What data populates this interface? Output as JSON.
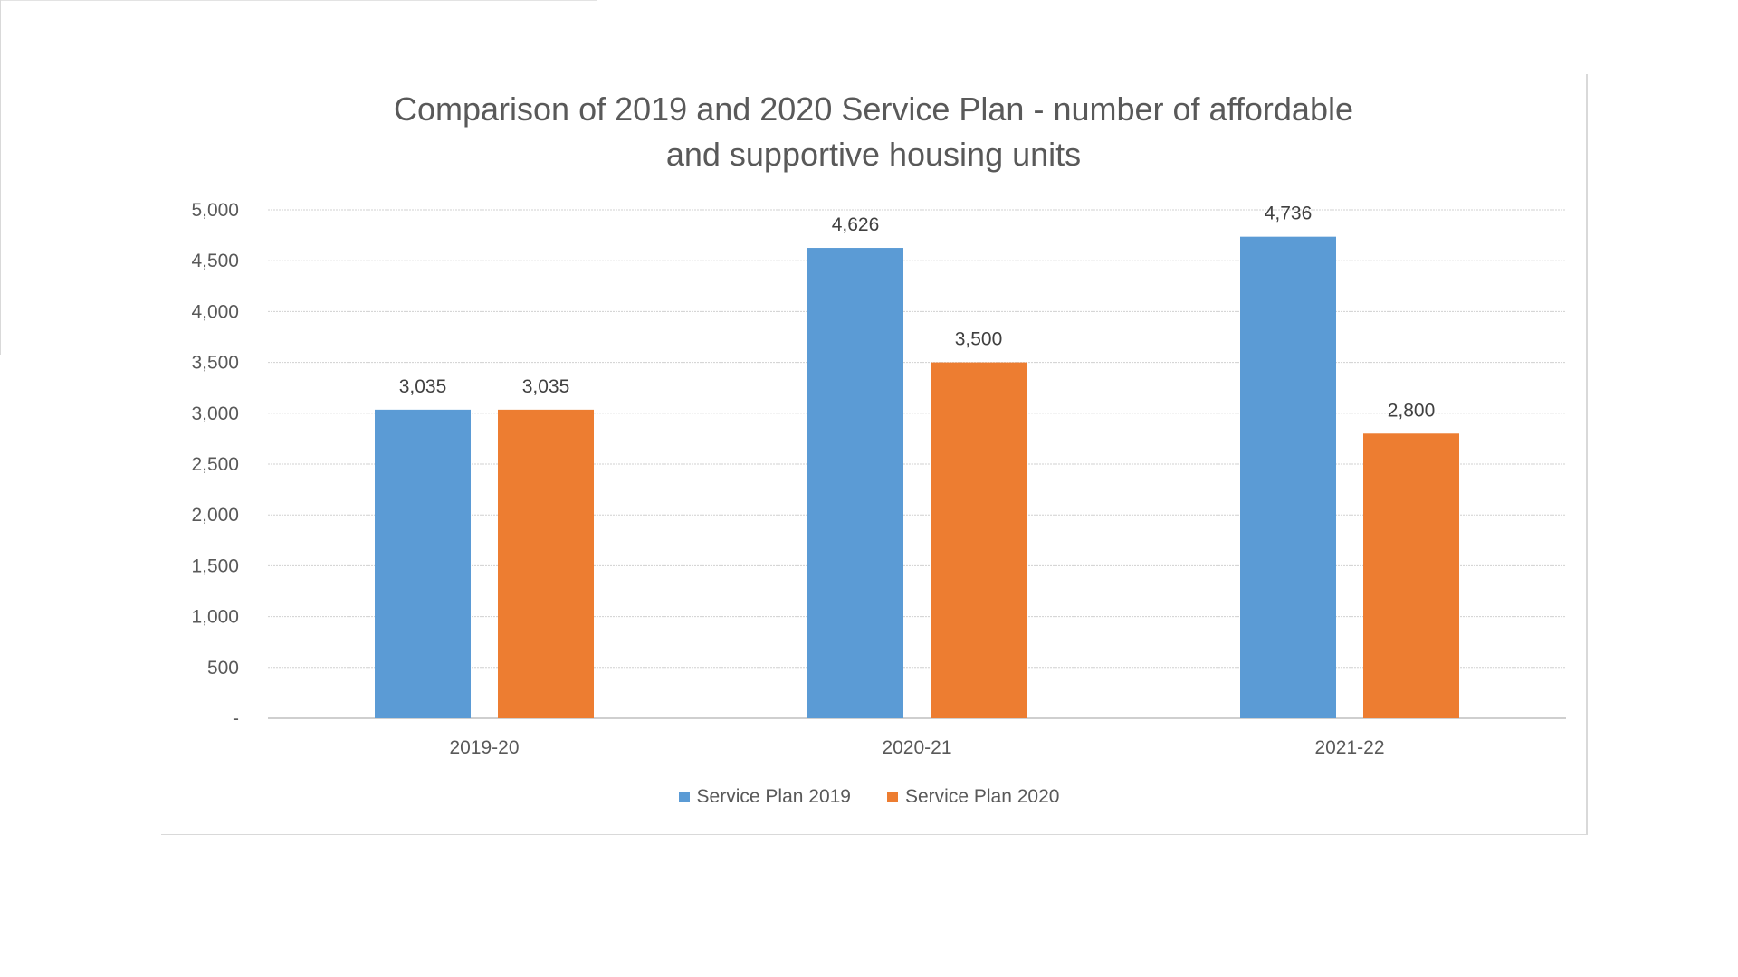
{
  "chart_data": {
    "type": "bar",
    "title": "Comparison of 2019 and 2020 Service Plan - number of affordable and supportive housing units",
    "title_lines": [
      "Comparison of 2019 and 2020 Service Plan - number of affordable",
      "and supportive housing units"
    ],
    "categories": [
      "2019-20",
      "2020-21",
      "2021-22"
    ],
    "series": [
      {
        "name": "Service Plan 2019",
        "color": "#5b9bd5",
        "values": [
          3035,
          4626,
          4736
        ],
        "labels": [
          "3,035",
          "4,626",
          "4,736"
        ]
      },
      {
        "name": "Service Plan 2020",
        "color": "#ed7d31",
        "values": [
          3035,
          3500,
          2800
        ],
        "labels": [
          "3,035",
          "3,500",
          "2,800"
        ]
      }
    ],
    "ylim": [
      0,
      5000
    ],
    "yticks": [
      0,
      500,
      1000,
      1500,
      2000,
      2500,
      3000,
      3500,
      4000,
      4500,
      5000
    ],
    "ytick_labels": [
      "-",
      "500",
      "1,000",
      "1,500",
      "2,000",
      "2,500",
      "3,000",
      "3,500",
      "4,000",
      "4,500",
      "5,000"
    ],
    "xlabel": "",
    "ylabel": "",
    "grid": true,
    "legend_position": "bottom"
  }
}
